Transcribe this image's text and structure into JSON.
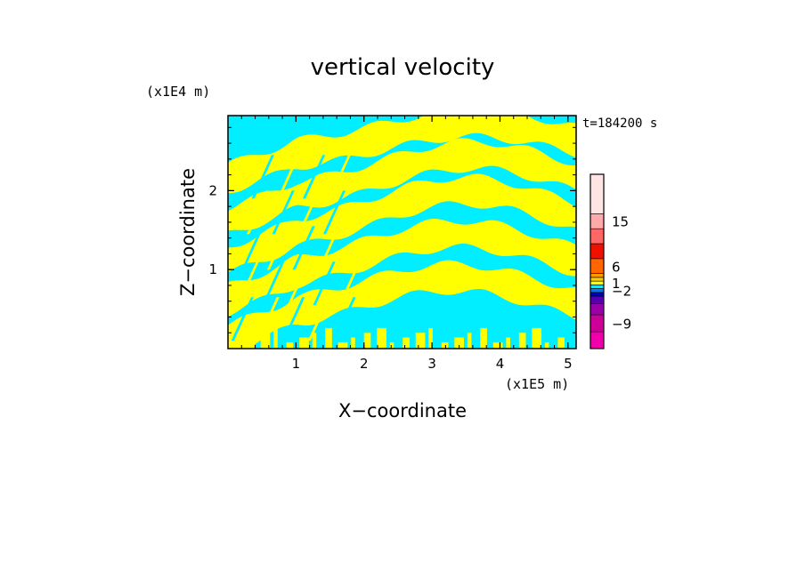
{
  "chart_data": {
    "type": "heatmap",
    "title": "vertical velocity",
    "xlabel": "X−coordinate",
    "ylabel": "Z−coordinate",
    "x_unit": "(x1E5 m)",
    "y_unit": "(x1E4 m)",
    "time_label": "t=184200 s",
    "xlim": [
      0,
      5.12
    ],
    "ylim": [
      0,
      2.95
    ],
    "x_ticks": [
      1,
      2,
      3,
      4,
      5
    ],
    "y_ticks": [
      1,
      2
    ],
    "x_tick_labels": [
      "1",
      "2",
      "3",
      "4",
      "5"
    ],
    "y_tick_labels": [
      "1",
      "2"
    ],
    "dominant_colors": [
      "#ffff00",
      "#00eeff"
    ],
    "field": {
      "description_colors": {
        "positive": "#ffff00",
        "negative": "#00eeff"
      },
      "wave_bands": [
        {
          "z_center": 0.35,
          "x_peak": 3.3,
          "amplitude": 0.55
        },
        {
          "z_center": 0.85,
          "x_peak": 3.4,
          "amplitude": 0.6
        },
        {
          "z_center": 1.35,
          "x_peak": 3.5,
          "amplitude": 0.65
        },
        {
          "z_center": 1.85,
          "x_peak": 3.6,
          "amplitude": 0.6
        },
        {
          "z_center": 2.4,
          "x_peak": 3.6,
          "amplitude": 0.45
        }
      ]
    },
    "colorbar": {
      "levels": [
        {
          "color": "#ee00aa"
        },
        {
          "color": "#cc0099"
        },
        {
          "color": "#9900aa"
        },
        {
          "color": "#5500aa"
        },
        {
          "color": "#0000bb"
        },
        {
          "color": "#0077ff"
        },
        {
          "color": "#00eeff"
        },
        {
          "color": "#ffff00"
        },
        {
          "color": "#ffcc00"
        },
        {
          "color": "#ff9900"
        },
        {
          "color": "#ff6600"
        },
        {
          "color": "#ee1100"
        },
        {
          "color": "#ff6666"
        },
        {
          "color": "#ffaaaa"
        },
        {
          "color": "#ffe4e4"
        }
      ],
      "labels": [
        {
          "text": "15",
          "value": 15
        },
        {
          "text": "6",
          "value": 6
        },
        {
          "text": "1",
          "value": 1
        },
        {
          "text": "−2",
          "value": -2
        },
        {
          "text": "−9",
          "value": -9
        }
      ]
    }
  }
}
